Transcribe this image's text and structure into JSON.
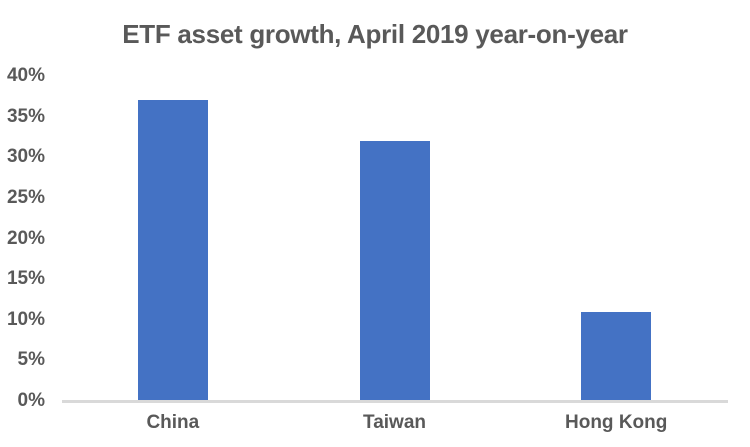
{
  "page": {
    "background_color": "#ffffff"
  },
  "chart_data": {
    "type": "bar",
    "title": "ETF asset growth, April 2019 year-on-year",
    "categories": [
      "China",
      "Taiwan",
      "Hong Kong"
    ],
    "values": [
      37,
      32,
      11
    ],
    "value_unit": "%",
    "xlabel": "",
    "ylabel": "",
    "ylim": [
      0,
      40
    ],
    "ytick_values": [
      0,
      5,
      10,
      15,
      20,
      25,
      30,
      35,
      40
    ],
    "ytick_labels": [
      "0%",
      "5%",
      "10%",
      "15%",
      "20%",
      "25%",
      "30%",
      "35%",
      "40%"
    ],
    "grid": false,
    "legend": "none",
    "bar_color": "#4472C4",
    "axis_line_color": "#D9D9D9",
    "text_color": "#595959"
  }
}
